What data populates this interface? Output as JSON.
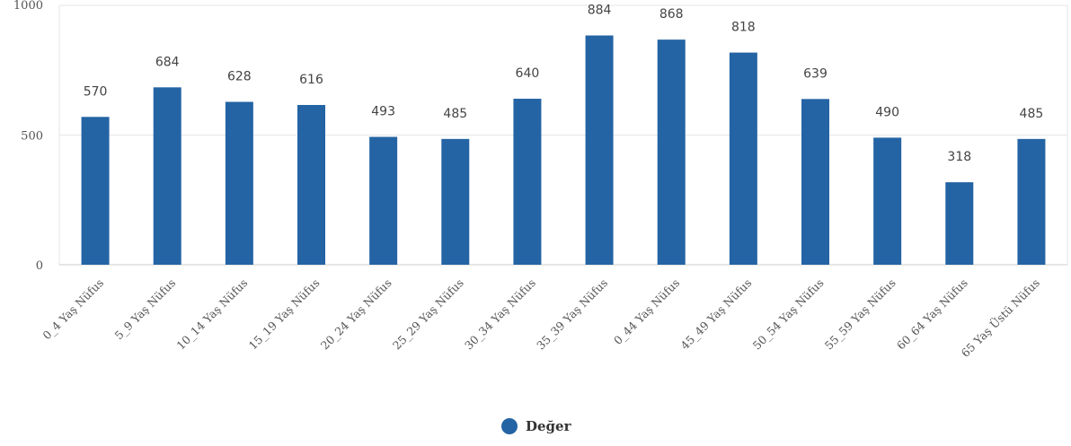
{
  "chart_data": {
    "type": "bar",
    "categories": [
      "0_4 Yaş Nüfus",
      "5_9 Yaş Nüfus",
      "10_14 Yaş Nüfus",
      "15_19 Yaş Nüfus",
      "20_24 Yaş Nüfus",
      "25_29 Yaş Nüfus",
      "30_34 Yaş Nüfus",
      "35_39 Yaş Nüfus",
      "0_44 Yaş Nüfus",
      "45_49 Yaş Nüfus",
      "50_54 Yaş Nüfus",
      "55_59 Yaş Nüfus",
      "60_64 Yaş Nüfus",
      "65 Yaş Üstü Nüfus"
    ],
    "series": [
      {
        "name": "Değer",
        "color": "#2464a4",
        "values": [
          570,
          684,
          628,
          616,
          493,
          485,
          640,
          884,
          868,
          818,
          639,
          490,
          318,
          485
        ]
      }
    ],
    "ylim": [
      0,
      1000
    ],
    "yticks": [
      "0",
      "500",
      "1000"
    ],
    "grid": true,
    "legend": "bottom-center",
    "data_labels": true
  }
}
